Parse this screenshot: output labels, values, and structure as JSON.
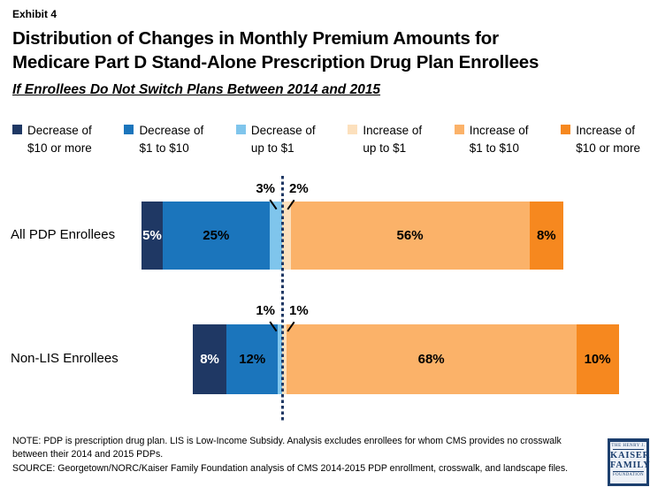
{
  "header": {
    "exhibit": "Exhibit 4",
    "title_line1": "Distribution of Changes in Monthly Premium Amounts for",
    "title_line2": "Medicare Part D Stand-Alone Prescription Drug Plan Enrollees",
    "subtitle": "If Enrollees Do Not Switch Plans Between 2014 and 2015"
  },
  "colors": {
    "decrease_10_or_more": "#1F3864",
    "decrease_1_to_10": "#1B75BC",
    "decrease_up_to_1": "#7FC5EC",
    "increase_up_to_1": "#FCE0BD",
    "increase_1_to_10": "#FBB269",
    "increase_10_or_more": "#F6881F",
    "zero_line": "#1F3864",
    "logo_navy": "#1C3F6E"
  },
  "legend": [
    {
      "line1": "Decrease of",
      "line2": "$10 or more",
      "color_key": "decrease_10_or_more"
    },
    {
      "line1": "Decrease of",
      "line2": "$1 to $10",
      "color_key": "decrease_1_to_10"
    },
    {
      "line1": "Decrease of",
      "line2": "up to $1",
      "color_key": "decrease_up_to_1"
    },
    {
      "line1": "Increase of",
      "line2": "up to $1",
      "color_key": "increase_up_to_1"
    },
    {
      "line1": "Increase of",
      "line2": "$1 to $10",
      "color_key": "increase_1_to_10"
    },
    {
      "line1": "Increase of",
      "line2": "$10 or more",
      "color_key": "increase_10_or_more"
    }
  ],
  "chart_data": {
    "type": "bar",
    "subtype": "horizontal-stacked-diverging",
    "categories": [
      "All PDP Enrollees",
      "Non-LIS Enrollees"
    ],
    "series": [
      {
        "name": "Decrease of $10 or more",
        "color_key": "decrease_10_or_more",
        "values": [
          5,
          8
        ]
      },
      {
        "name": "Decrease of $1 to $10",
        "color_key": "decrease_1_to_10",
        "values": [
          25,
          12
        ]
      },
      {
        "name": "Decrease of up to $1",
        "color_key": "decrease_up_to_1",
        "values": [
          3,
          1
        ]
      },
      {
        "name": "Increase of up to $1",
        "color_key": "increase_up_to_1",
        "values": [
          2,
          1
        ]
      },
      {
        "name": "Increase of $1 to $10",
        "color_key": "increase_1_to_10",
        "values": [
          56,
          68
        ]
      },
      {
        "name": "Increase of $10 or more",
        "color_key": "increase_10_or_more",
        "values": [
          8,
          10
        ]
      }
    ],
    "value_suffix": "%",
    "xlim_percent": [
      -35,
      80
    ],
    "zero_anchor": "dotted vertical line separates decreases (left) from increases (right)",
    "grid": false,
    "legend_position": "top"
  },
  "footer": {
    "note": "NOTE: PDP is prescription drug plan. LIS is Low-Income Subsidy. Analysis excludes enrollees for whom CMS provides no crosswalk between their 2014 and 2015 PDPs.",
    "source": "SOURCE: Georgetown/NORC/Kaiser Family Foundation analysis of CMS 2014-2015 PDP enrollment, crosswalk, and landscape files."
  },
  "logo": {
    "line1": "THE HENRY J.",
    "line2": "KAISER",
    "line3": "FAMILY",
    "line4": "FOUNDATION"
  }
}
